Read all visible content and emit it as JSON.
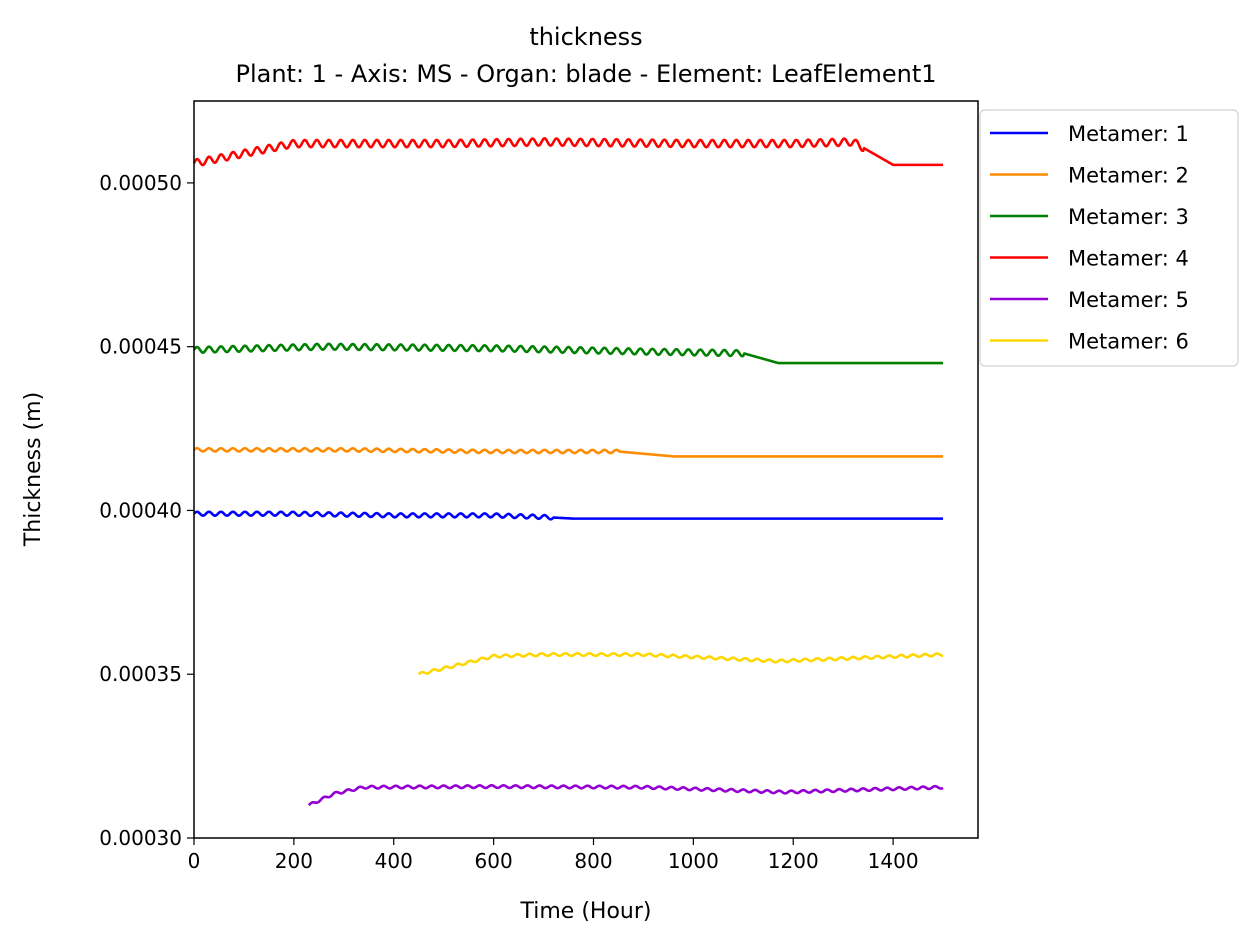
{
  "chart_data": {
    "type": "line",
    "title": "thickness",
    "subtitle": "Plant: 1 - Axis: MS - Organ: blade - Element: LeafElement1",
    "xlabel": "Time (Hour)",
    "ylabel": "Thickness (m)",
    "xlim": [
      0,
      1570
    ],
    "ylim": [
      0.0003,
      0.000525
    ],
    "xticks": [
      0,
      200,
      400,
      600,
      800,
      1000,
      1200,
      1400
    ],
    "xtick_labels": [
      "0",
      "200",
      "400",
      "600",
      "800",
      "1000",
      "1200",
      "1400"
    ],
    "yticks": [
      0.0003,
      0.00035,
      0.0004,
      0.00045,
      0.0005
    ],
    "ytick_labels": [
      "0.00030",
      "0.00035",
      "0.00040",
      "0.00045",
      "0.00050"
    ],
    "grid": false,
    "legend_position": "outside-right-top",
    "series": [
      {
        "name": "Metamer: 1",
        "color": "#0000ff",
        "x_start": 0,
        "x_end": 1500,
        "points": [
          [
            0,
            0.000399
          ],
          [
            200,
            0.000399
          ],
          [
            400,
            0.0003985
          ],
          [
            600,
            0.0003985
          ],
          [
            700,
            0.000398
          ],
          [
            760,
            0.0003975
          ],
          [
            1500,
            0.0003975
          ]
        ],
        "oscillation": {
          "amplitude": 6e-07,
          "period": 24,
          "until": 720
        }
      },
      {
        "name": "Metamer: 2",
        "color": "#ff8c00",
        "x_start": 0,
        "x_end": 1500,
        "points": [
          [
            0,
            0.0004185
          ],
          [
            300,
            0.0004185
          ],
          [
            600,
            0.000418
          ],
          [
            850,
            0.000418
          ],
          [
            960,
            0.0004165
          ],
          [
            1500,
            0.0004165
          ]
        ],
        "oscillation": {
          "amplitude": 5e-07,
          "period": 24,
          "until": 850
        }
      },
      {
        "name": "Metamer: 3",
        "color": "#008000",
        "x_start": 0,
        "x_end": 1500,
        "points": [
          [
            0,
            0.000449
          ],
          [
            260,
            0.00045
          ],
          [
            600,
            0.0004495
          ],
          [
            900,
            0.0004485
          ],
          [
            1100,
            0.000448
          ],
          [
            1170,
            0.000445
          ],
          [
            1500,
            0.000445
          ]
        ],
        "oscillation": {
          "amplitude": 9e-07,
          "period": 24,
          "until": 1100
        }
      },
      {
        "name": "Metamer: 4",
        "color": "#ff0000",
        "x_start": 0,
        "x_end": 1500,
        "points": [
          [
            0,
            0.000506
          ],
          [
            100,
            0.000509
          ],
          [
            200,
            0.000512
          ],
          [
            500,
            0.000512
          ],
          [
            700,
            0.0005125
          ],
          [
            1000,
            0.000512
          ],
          [
            1200,
            0.000512
          ],
          [
            1320,
            0.0005125
          ],
          [
            1360,
            0.000509
          ],
          [
            1400,
            0.0005055
          ],
          [
            1500,
            0.0005055
          ]
        ],
        "oscillation": {
          "amplitude": 1.1e-06,
          "period": 24,
          "until": 1340
        }
      },
      {
        "name": "Metamer: 5",
        "color": "#9400d3",
        "x_start": 230,
        "x_end": 1500,
        "points": [
          [
            230,
            0.00031
          ],
          [
            280,
            0.0003135
          ],
          [
            340,
            0.0003155
          ],
          [
            600,
            0.0003157
          ],
          [
            900,
            0.0003155
          ],
          [
            1180,
            0.000314
          ],
          [
            1500,
            0.0003155
          ]
        ],
        "oscillation": {
          "amplitude": 4e-07,
          "period": 24,
          "until": 1500
        }
      },
      {
        "name": "Metamer: 6",
        "color": "#ffd700",
        "x_start": 450,
        "x_end": 1500,
        "points": [
          [
            450,
            0.00035
          ],
          [
            520,
            0.0003525
          ],
          [
            600,
            0.0003555
          ],
          [
            700,
            0.000356
          ],
          [
            900,
            0.000356
          ],
          [
            1170,
            0.000354
          ],
          [
            1500,
            0.000356
          ]
        ],
        "oscillation": {
          "amplitude": 4e-07,
          "period": 24,
          "until": 1500
        }
      }
    ]
  }
}
